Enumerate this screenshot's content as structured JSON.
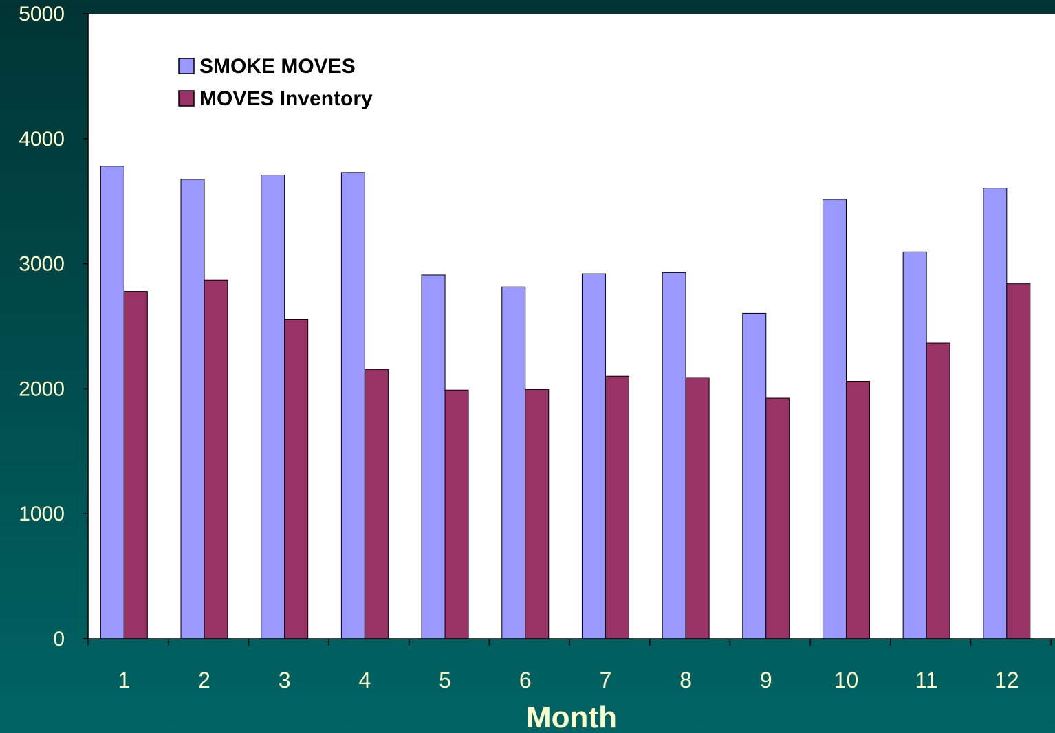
{
  "chart_data": {
    "type": "bar",
    "title": "",
    "xlabel": "Month",
    "ylabel": "",
    "ylim": [
      0,
      5000
    ],
    "yticks": [
      "0",
      "1000",
      "2000",
      "3000",
      "4000",
      "5000"
    ],
    "categories": [
      "1",
      "2",
      "3",
      "4",
      "5",
      "6",
      "7",
      "8",
      "9",
      "10",
      "11",
      "12"
    ],
    "series": [
      {
        "name": "SMOKE MOVES",
        "color": "#9999ff",
        "values": [
          3780,
          3675,
          3710,
          3730,
          2910,
          2815,
          2920,
          2930,
          2605,
          3515,
          3095,
          3605
        ]
      },
      {
        "name": "MOVES Inventory",
        "color": "#993366",
        "values": [
          2780,
          2870,
          2555,
          2155,
          1990,
          1995,
          2100,
          2090,
          1925,
          2060,
          2365,
          2840
        ]
      }
    ],
    "grid": false,
    "legend": "top-left",
    "colors": {
      "plot_background": "#ffffff",
      "page_background": "#006464",
      "text": "#ffffcc"
    }
  }
}
